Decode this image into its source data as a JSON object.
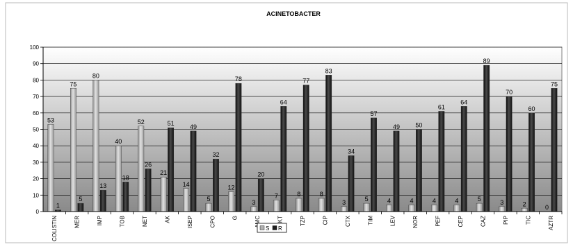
{
  "chart_data": {
    "type": "bar",
    "title": "ACINETOBACTER",
    "xlabel": "",
    "ylabel": "",
    "ylim": [
      0,
      100
    ],
    "yticks": [
      0,
      10,
      20,
      30,
      40,
      50,
      60,
      70,
      80,
      90,
      100
    ],
    "grid": true,
    "legend_position": "bottom",
    "categories": [
      "COLISTIN",
      "MER",
      "IMP",
      "TOB",
      "NET",
      "AK",
      "ISEP",
      "CPO",
      "G",
      "AMC",
      "KT",
      "TZP",
      "CIP",
      "CTX",
      "TIM",
      "LEV",
      "NOR",
      "PEF",
      "CEP",
      "CAZ",
      "PIP",
      "TIC",
      "AZTR"
    ],
    "series": [
      {
        "name": "S",
        "color": "#b0b0b0",
        "values": [
          53,
          75,
          80,
          40,
          52,
          21,
          14,
          5,
          12,
          3,
          7,
          8,
          8,
          3,
          5,
          4,
          4,
          4,
          4,
          5,
          3,
          2,
          0
        ]
      },
      {
        "name": "R",
        "color": "#1e1e1e",
        "values": [
          1,
          5,
          13,
          18,
          26,
          51,
          49,
          32,
          78,
          20,
          64,
          77,
          83,
          34,
          57,
          49,
          50,
          61,
          64,
          89,
          70,
          60,
          75
        ]
      }
    ]
  }
}
